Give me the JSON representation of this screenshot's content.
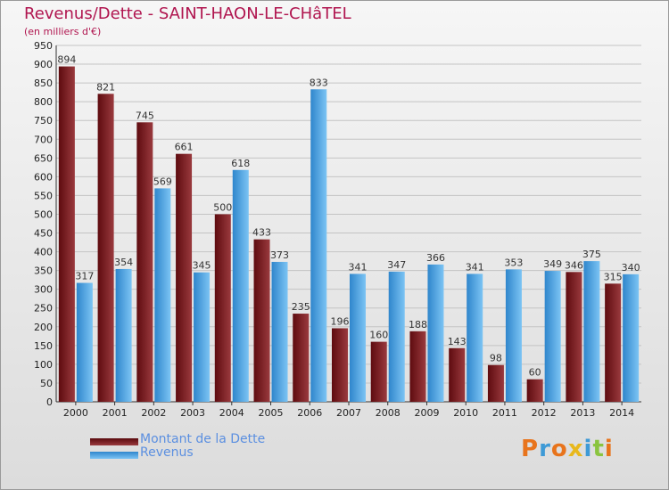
{
  "chart_data": {
    "type": "bar",
    "title": "Revenus/Dette - SAINT-HAON-LE-CHâTEL",
    "subtitle": "(en milliers d'€)",
    "categories": [
      "2000",
      "2001",
      "2002",
      "2003",
      "2004",
      "2005",
      "2006",
      "2007",
      "2008",
      "2009",
      "2010",
      "2011",
      "2012",
      "2013",
      "2014"
    ],
    "series": [
      {
        "name": "Montant de la Dette",
        "values": [
          894,
          821,
          745,
          661,
          500,
          433,
          235,
          196,
          160,
          188,
          143,
          98,
          60,
          346,
          315
        ],
        "color": "#7a1a1e"
      },
      {
        "name": "Revenus",
        "values": [
          317,
          354,
          569,
          345,
          618,
          373,
          833,
          341,
          347,
          366,
          341,
          353,
          349,
          375,
          340
        ],
        "color": "#4aa8e8"
      }
    ],
    "ylim": [
      0,
      950
    ],
    "yticks": [
      0,
      50,
      100,
      150,
      200,
      250,
      300,
      350,
      400,
      450,
      500,
      550,
      600,
      650,
      700,
      750,
      800,
      850,
      900,
      950
    ],
    "grid": true,
    "legend_position": "bottom-left"
  },
  "legend": {
    "debt_label": "Montant de la Dette",
    "revenue_label": "Revenus"
  },
  "logo": {
    "letters": [
      "P",
      "r",
      "o",
      "x",
      "i",
      "t",
      "i"
    ],
    "colors": [
      "#e8741c",
      "#3e9ad6",
      "#e8741c",
      "#e8b81c",
      "#3e9ad6",
      "#8ac43f",
      "#e8741c"
    ]
  }
}
